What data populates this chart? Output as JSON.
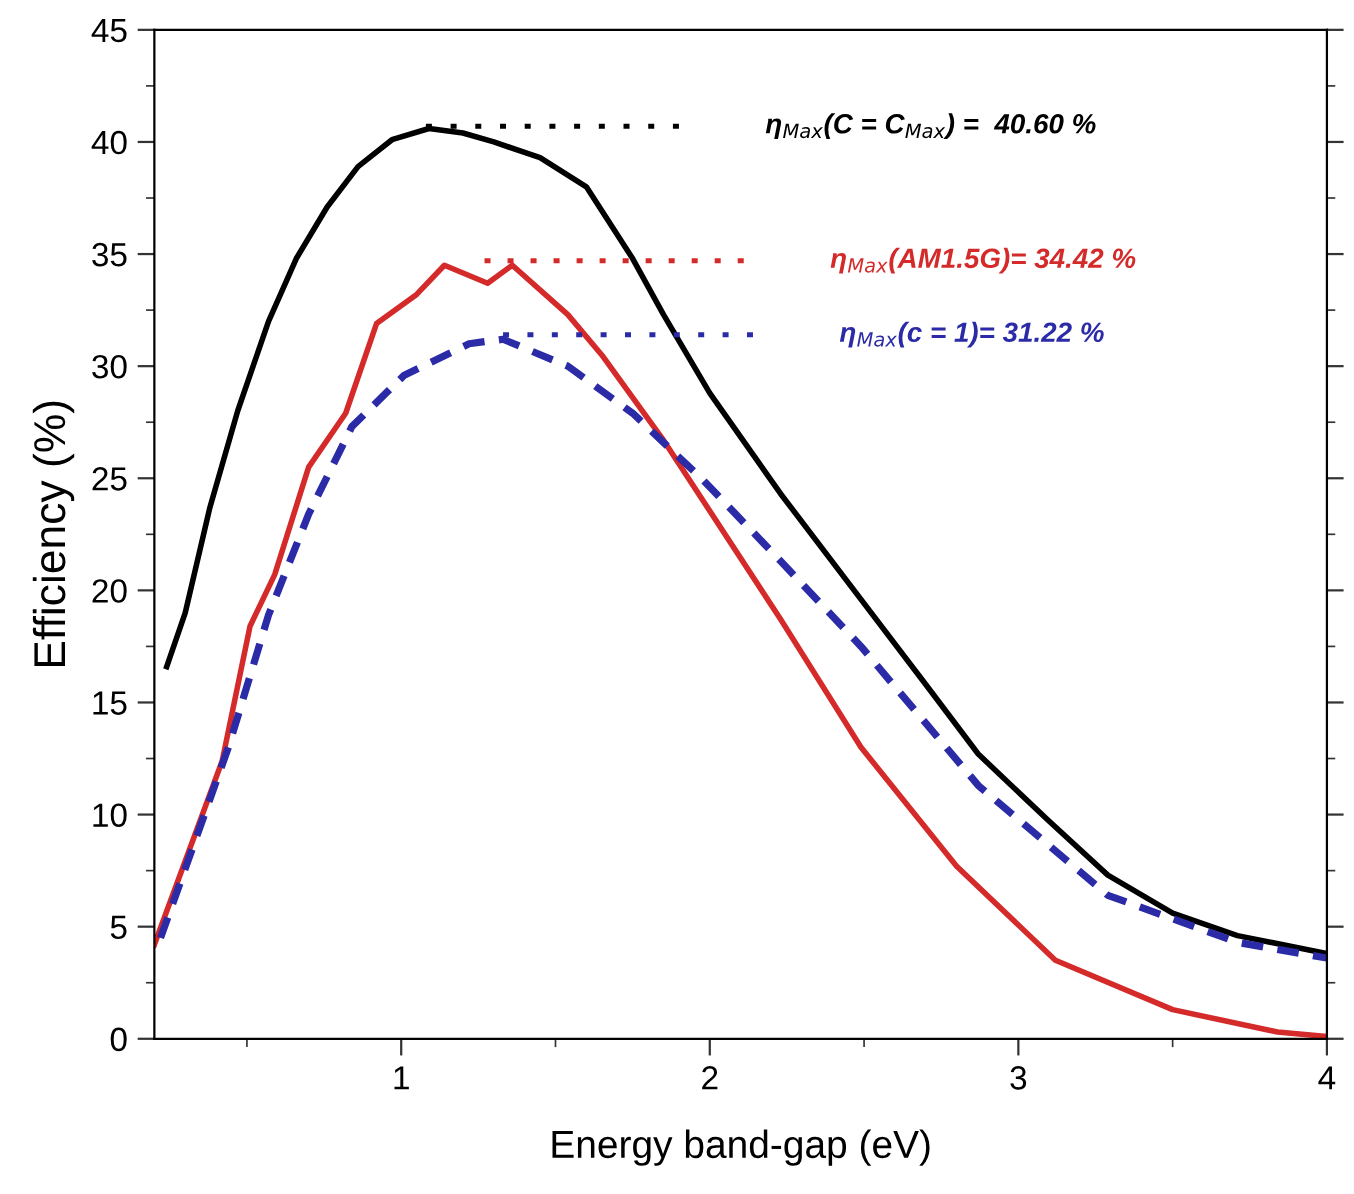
{
  "chart_data": {
    "type": "line",
    "xlabel": "Energy band-gap (eV)",
    "ylabel": "Efficiency (%)",
    "xlim": [
      0.2,
      4
    ],
    "ylim": [
      0,
      45
    ],
    "xticks": [
      1,
      2,
      3,
      4
    ],
    "yticks": [
      0,
      5,
      10,
      15,
      20,
      25,
      30,
      35,
      40,
      45
    ],
    "grid": false,
    "marker": "none",
    "series": [
      {
        "color": "#000000",
        "line_style": "solid",
        "x": [
          0.24,
          0.3,
          0.38,
          0.47,
          0.57,
          0.66,
          0.76,
          0.86,
          0.97,
          1.09,
          1.2,
          1.3,
          1.45,
          1.6,
          1.75,
          1.85,
          2.0,
          2.23,
          2.49,
          2.7,
          2.87,
          3.1,
          3.29,
          3.5,
          3.71,
          4.0
        ],
        "values": [
          16.6,
          19,
          23.7,
          28,
          32,
          34.8,
          37.1,
          38.9,
          40.1,
          40.6,
          40.4,
          40.0,
          39.3,
          38.0,
          34.8,
          32.3,
          28.8,
          24.3,
          19.6,
          15.8,
          12.7,
          9.7,
          7.3,
          5.6,
          4.6,
          3.8
        ]
      },
      {
        "color": "#d42a2a",
        "line_style": "solid",
        "x": [
          0.2,
          0.42,
          0.51,
          0.59,
          0.7,
          0.82,
          0.92,
          1.05,
          1.14,
          1.28,
          1.36,
          1.54,
          1.65,
          1.85,
          2.23,
          2.49,
          2.8,
          3.12,
          3.5,
          3.84,
          4.0
        ],
        "values": [
          4.2,
          12.4,
          18.4,
          20.7,
          25.5,
          27.9,
          31.9,
          33.2,
          34.5,
          33.7,
          34.5,
          32.3,
          30.5,
          26.7,
          18.7,
          13.0,
          7.7,
          3.5,
          1.3,
          0.3,
          0.1
        ]
      },
      {
        "color": "#2b2ba8",
        "line_style": "dashed",
        "x": [
          0.22,
          0.44,
          0.57,
          0.7,
          0.84,
          1.01,
          1.22,
          1.33,
          1.54,
          1.75,
          1.98,
          2.23,
          2.49,
          2.87,
          3.29,
          3.71,
          4.0
        ],
        "values": [
          4.5,
          13.0,
          18.9,
          23.4,
          27.3,
          29.6,
          31.0,
          31.2,
          30.0,
          27.9,
          24.9,
          21.3,
          17.5,
          11.3,
          6.4,
          4.3,
          3.6
        ]
      },
      {
        "color": "#000000",
        "line_style": "dotted",
        "x": [
          1.08,
          1.9
        ],
        "values": [
          40.7,
          40.7
        ]
      },
      {
        "color": "#d42a2a",
        "line_style": "dotted",
        "x": [
          1.27,
          2.11
        ],
        "values": [
          34.7,
          34.7
        ]
      },
      {
        "color": "#2b2ba8",
        "line_style": "dotted",
        "x": [
          1.33,
          2.14
        ],
        "values": [
          31.4,
          31.4
        ]
      }
    ],
    "annotations": [
      "η$_{Max}$(C = C$_{Max}$) =  40.60 %",
      "η$_{Max}$(AM1.5G)= 34.42 %",
      "η$_{Max}$(c = 1)= 31.22 %"
    ]
  }
}
